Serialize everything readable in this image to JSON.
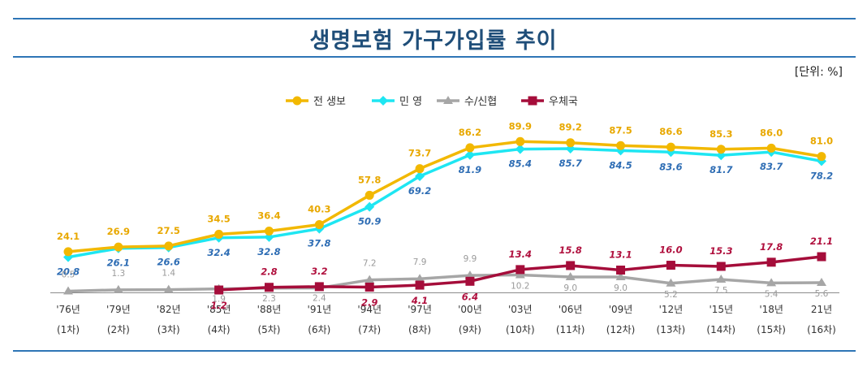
{
  "title": "생명보험 가구가입률 추이",
  "unit": "[단위: %]",
  "chart_data": {
    "type": "line",
    "title": "생명보험 가구가입률 추이",
    "xlabel": "",
    "ylabel": "",
    "ylim": [
      0,
      100
    ],
    "grid": false,
    "legend_position": "top",
    "categories": [
      "'76년",
      "'79년",
      "'82년",
      "'85년",
      "'88년",
      "'91년",
      "'94년",
      "'97년",
      "'00년",
      "'03년",
      "'06년",
      "'09년",
      "'12년",
      "'15년",
      "'18년",
      "21년"
    ],
    "category_sublabels": [
      "(1차)",
      "(2차)",
      "(3차)",
      "(4차)",
      "(5차)",
      "(6차)",
      "(7차)",
      "(8차)",
      "(9차)",
      "(10차)",
      "(11차)",
      "(12차)",
      "(13차)",
      "(14차)",
      "(15차)",
      "(16차)"
    ],
    "series": [
      {
        "name": "전 생보",
        "color": "#f2b800",
        "label_color": "#e8a800",
        "marker": "circle",
        "values": [
          24.1,
          26.9,
          27.5,
          34.5,
          36.4,
          40.3,
          57.8,
          73.7,
          86.2,
          89.9,
          89.2,
          87.5,
          86.6,
          85.3,
          86.0,
          81.0
        ],
        "labels": [
          "24.1",
          "26.9",
          "27.5",
          "34.5",
          "36.4",
          "40.3",
          "57.8",
          "73.7",
          "86.2",
          "89.9",
          "89.2",
          "87.5",
          "86.6",
          "85.3",
          "86.0",
          "81.0"
        ]
      },
      {
        "name": "민 영",
        "color": "#1ee6f2",
        "label_color": "#2e6db4",
        "marker": "diamond",
        "values": [
          20.8,
          26.1,
          26.6,
          32.4,
          32.8,
          37.8,
          50.9,
          69.2,
          81.9,
          85.4,
          85.7,
          84.5,
          83.6,
          81.7,
          83.7,
          78.2
        ],
        "labels": [
          "20.8",
          "26.1",
          "26.6",
          "32.4",
          "32.8",
          "37.8",
          "50.9",
          "69.2",
          "81.9",
          "85.4",
          "85.7",
          "84.5",
          "83.6",
          "81.7",
          "83.7",
          "78.2"
        ]
      },
      {
        "name": "수/신협",
        "color": "#a6a6a6",
        "label_color": "#9a9a9a",
        "marker": "triangle",
        "values": [
          0.5,
          1.3,
          1.4,
          1.9,
          2.3,
          2.4,
          7.2,
          7.9,
          9.9,
          10.2,
          9.0,
          9.0,
          5.2,
          7.5,
          5.4,
          5.6
        ],
        "labels": [
          "0.5",
          "1.3",
          "1.4",
          "1.9",
          "2.3",
          "2.4",
          "7.2",
          "7.9",
          "9.9",
          "10.2",
          "9.0",
          "9.0",
          "5.2",
          "7.5",
          "5.4",
          "5.6"
        ]
      },
      {
        "name": "우체국",
        "color": "#a50d3a",
        "label_color": "#b0103e",
        "marker": "square",
        "values": [
          null,
          null,
          null,
          1.2,
          2.8,
          3.2,
          2.9,
          4.1,
          6.4,
          13.4,
          15.8,
          13.1,
          16.0,
          15.3,
          17.8,
          21.1
        ],
        "labels": [
          null,
          null,
          null,
          "1.2",
          "2.8",
          "3.2",
          "2.9",
          "4.1",
          "6.4",
          "13.4",
          "15.8",
          "13.1",
          "16.0",
          "15.3",
          "17.8",
          "21.1"
        ]
      }
    ]
  }
}
